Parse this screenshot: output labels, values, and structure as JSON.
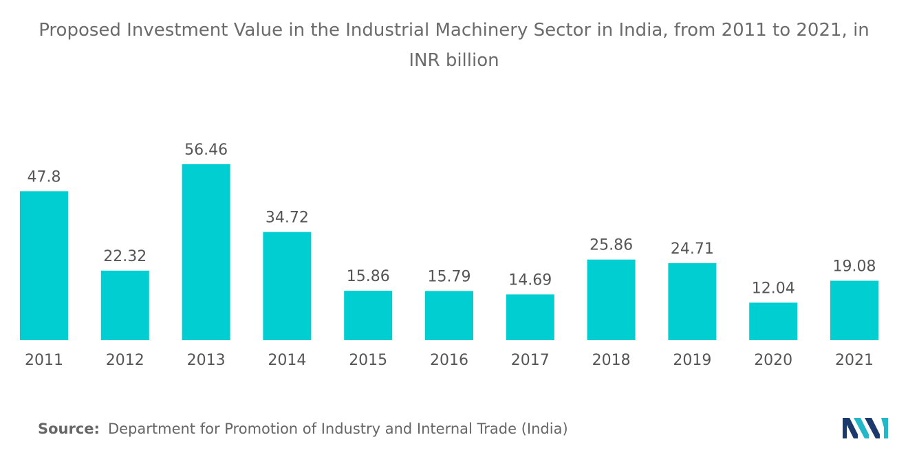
{
  "chart_data": {
    "type": "bar",
    "title": "Proposed Investment Value in the Industrial Machinery Sector in India, from 2011 to 2021, in INR billion",
    "categories": [
      "2011",
      "2012",
      "2013",
      "2014",
      "2015",
      "2016",
      "2017",
      "2018",
      "2019",
      "2020",
      "2021"
    ],
    "values": [
      47.8,
      22.32,
      56.46,
      34.72,
      15.86,
      15.79,
      14.69,
      25.86,
      24.71,
      12.04,
      19.08
    ],
    "value_labels": [
      "47.8",
      "22.32",
      "56.46",
      "34.72",
      "15.86",
      "15.79",
      "14.69",
      "25.86",
      "24.71",
      "12.04",
      "19.08"
    ],
    "xlabel": "",
    "ylabel": "",
    "ylim": [
      0,
      56.46
    ],
    "grid": false,
    "legend": "none",
    "bar_color": "#00CED1"
  },
  "header": {
    "title_line1": "Proposed Investment Value in the Industrial Machinery Sector in India, from 2011 to 2021, in",
    "title_line2": "INR billion"
  },
  "footer": {
    "source_label": "Source:",
    "source_text": "Department for Promotion of Industry and Internal Trade (India)",
    "logo_icon": "mordor-intelligence-logo-icon"
  },
  "colors": {
    "bar": "#00CED1",
    "logo_dark": "#1B3A6B",
    "logo_light": "#22B8C7"
  }
}
